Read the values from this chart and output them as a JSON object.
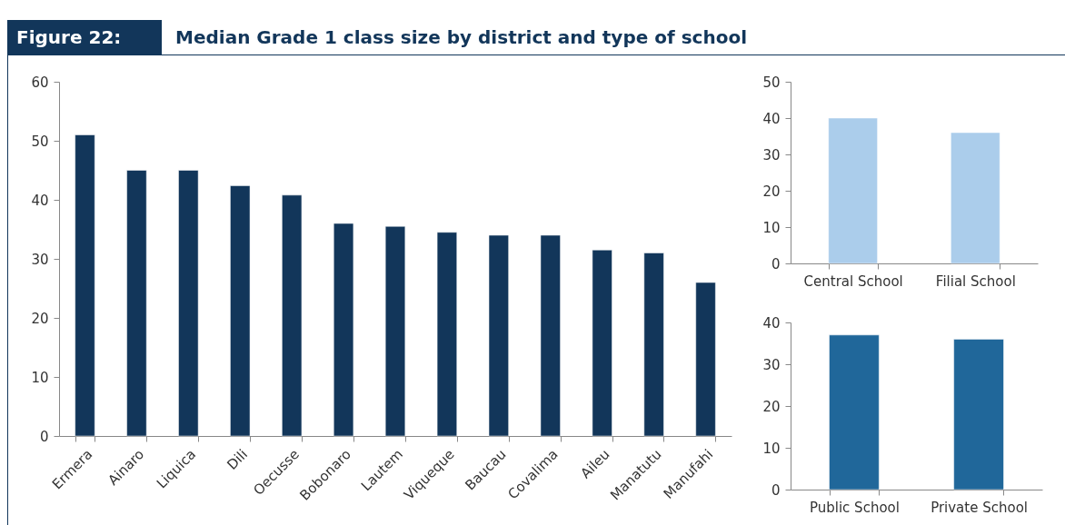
{
  "chart_data": [
    {
      "type": "bar",
      "title": "Figure 22:",
      "subtitle": "Median Grade 1 class size by district and type of school",
      "categories": [
        "Ermera",
        "Ainaro",
        "Liquica",
        "Dili",
        "Oecusse",
        "Bobonaro",
        "Lautem",
        "Viqueque",
        "Baucau",
        "Covalima",
        "Aileu",
        "Manatutu",
        "Manufahi"
      ],
      "values": [
        51,
        45,
        45,
        42.4,
        40.8,
        36,
        35.5,
        34.5,
        34,
        34,
        31.5,
        31,
        26
      ],
      "color": "#12365a",
      "ylim": [
        0,
        60
      ],
      "yticks": [
        0,
        10,
        20,
        30,
        40,
        50,
        60
      ]
    },
    {
      "type": "bar",
      "categories": [
        "Central School",
        "Filial School"
      ],
      "values": [
        40,
        36
      ],
      "color": "#abcdeb",
      "ylim": [
        0,
        50
      ],
      "yticks": [
        0,
        10,
        20,
        30,
        40,
        50
      ]
    },
    {
      "type": "bar",
      "categories": [
        "Public School",
        "Private School"
      ],
      "values": [
        37,
        36
      ],
      "color": "#20679a",
      "ylim": [
        0,
        40
      ],
      "yticks": [
        0,
        10,
        20,
        30,
        40
      ]
    }
  ]
}
